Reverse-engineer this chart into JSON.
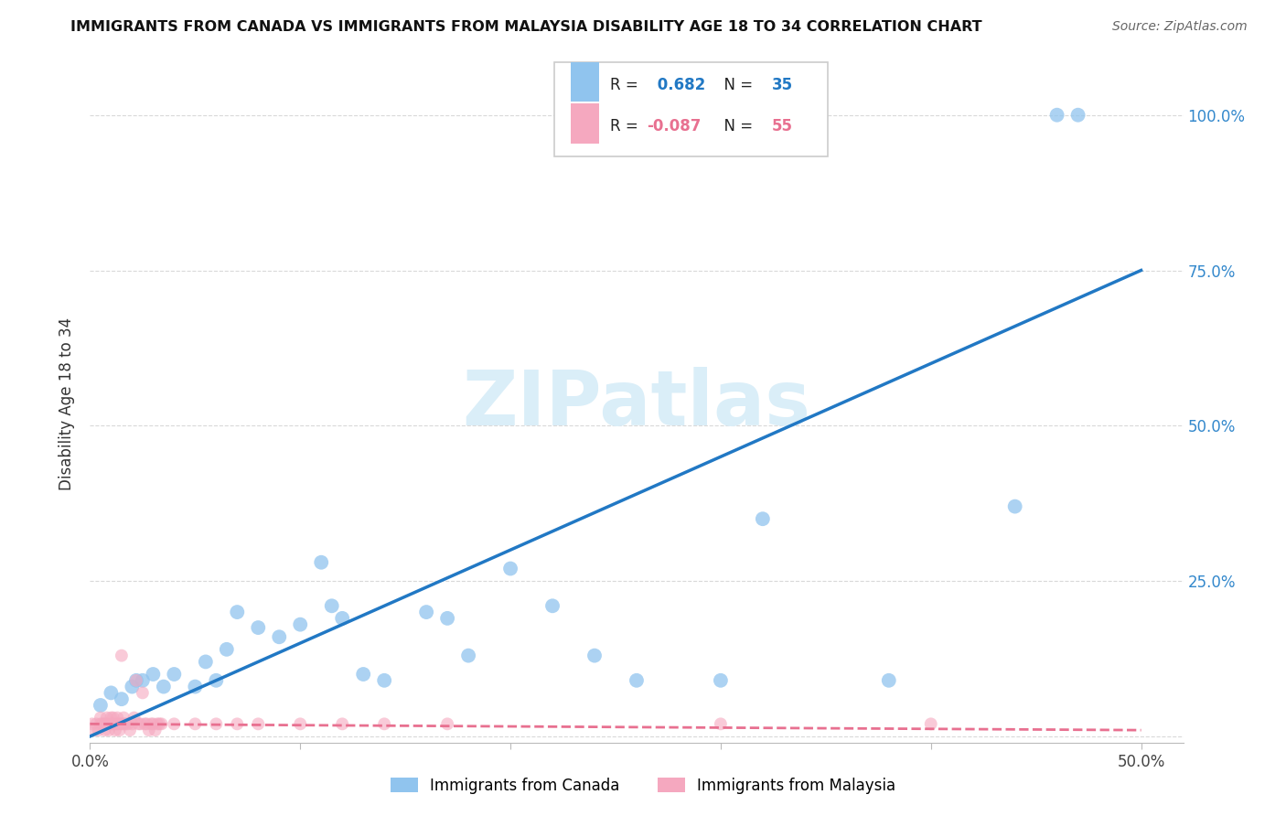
{
  "title": "IMMIGRANTS FROM CANADA VS IMMIGRANTS FROM MALAYSIA DISABILITY AGE 18 TO 34 CORRELATION CHART",
  "source": "Source: ZipAtlas.com",
  "ylabel": "Disability Age 18 to 34",
  "xlim": [
    0.0,
    0.52
  ],
  "ylim": [
    -0.01,
    1.08
  ],
  "canada_R": 0.682,
  "canada_N": 35,
  "malaysia_R": -0.087,
  "malaysia_N": 55,
  "canada_color": "#90c4ee",
  "malaysia_color": "#f5a8bf",
  "canada_line_color": "#2178c4",
  "malaysia_line_color": "#e87090",
  "watermark_color": "#daeef8",
  "grid_color": "#d5d5d5",
  "canada_points_x": [
    0.005,
    0.01,
    0.015,
    0.02,
    0.022,
    0.025,
    0.03,
    0.035,
    0.04,
    0.05,
    0.055,
    0.06,
    0.065,
    0.07,
    0.08,
    0.09,
    0.1,
    0.11,
    0.115,
    0.12,
    0.13,
    0.14,
    0.16,
    0.17,
    0.18,
    0.2,
    0.22,
    0.24,
    0.26,
    0.3,
    0.32,
    0.38,
    0.44,
    0.46,
    0.47
  ],
  "canada_points_y": [
    0.05,
    0.07,
    0.06,
    0.08,
    0.09,
    0.09,
    0.1,
    0.08,
    0.1,
    0.08,
    0.12,
    0.09,
    0.14,
    0.2,
    0.175,
    0.16,
    0.18,
    0.28,
    0.21,
    0.19,
    0.1,
    0.09,
    0.2,
    0.19,
    0.13,
    0.27,
    0.21,
    0.13,
    0.09,
    0.09,
    0.35,
    0.09,
    0.37,
    1.0,
    1.0
  ],
  "malaysia_points_x": [
    0.001,
    0.002,
    0.003,
    0.004,
    0.005,
    0.005,
    0.006,
    0.007,
    0.007,
    0.008,
    0.008,
    0.009,
    0.01,
    0.01,
    0.011,
    0.011,
    0.012,
    0.012,
    0.013,
    0.013,
    0.014,
    0.014,
    0.015,
    0.015,
    0.016,
    0.016,
    0.017,
    0.018,
    0.019,
    0.02,
    0.021,
    0.022,
    0.023,
    0.024,
    0.025,
    0.026,
    0.027,
    0.028,
    0.029,
    0.03,
    0.031,
    0.032,
    0.033,
    0.034,
    0.04,
    0.05,
    0.06,
    0.07,
    0.08,
    0.1,
    0.12,
    0.14,
    0.17,
    0.3,
    0.4
  ],
  "malaysia_points_y": [
    0.02,
    0.01,
    0.02,
    0.01,
    0.02,
    0.03,
    0.02,
    0.01,
    0.02,
    0.02,
    0.03,
    0.01,
    0.02,
    0.03,
    0.02,
    0.03,
    0.02,
    0.01,
    0.02,
    0.03,
    0.02,
    0.01,
    0.13,
    0.02,
    0.02,
    0.03,
    0.02,
    0.02,
    0.01,
    0.02,
    0.03,
    0.09,
    0.02,
    0.02,
    0.07,
    0.02,
    0.02,
    0.01,
    0.02,
    0.02,
    0.01,
    0.02,
    0.02,
    0.02,
    0.02,
    0.02,
    0.02,
    0.02,
    0.02,
    0.02,
    0.02,
    0.02,
    0.02,
    0.02,
    0.02
  ],
  "canada_line_x": [
    0.0,
    0.5
  ],
  "canada_line_y": [
    0.0,
    0.75
  ],
  "malaysia_line_x": [
    0.0,
    0.5
  ],
  "malaysia_line_y": [
    0.02,
    0.01
  ]
}
